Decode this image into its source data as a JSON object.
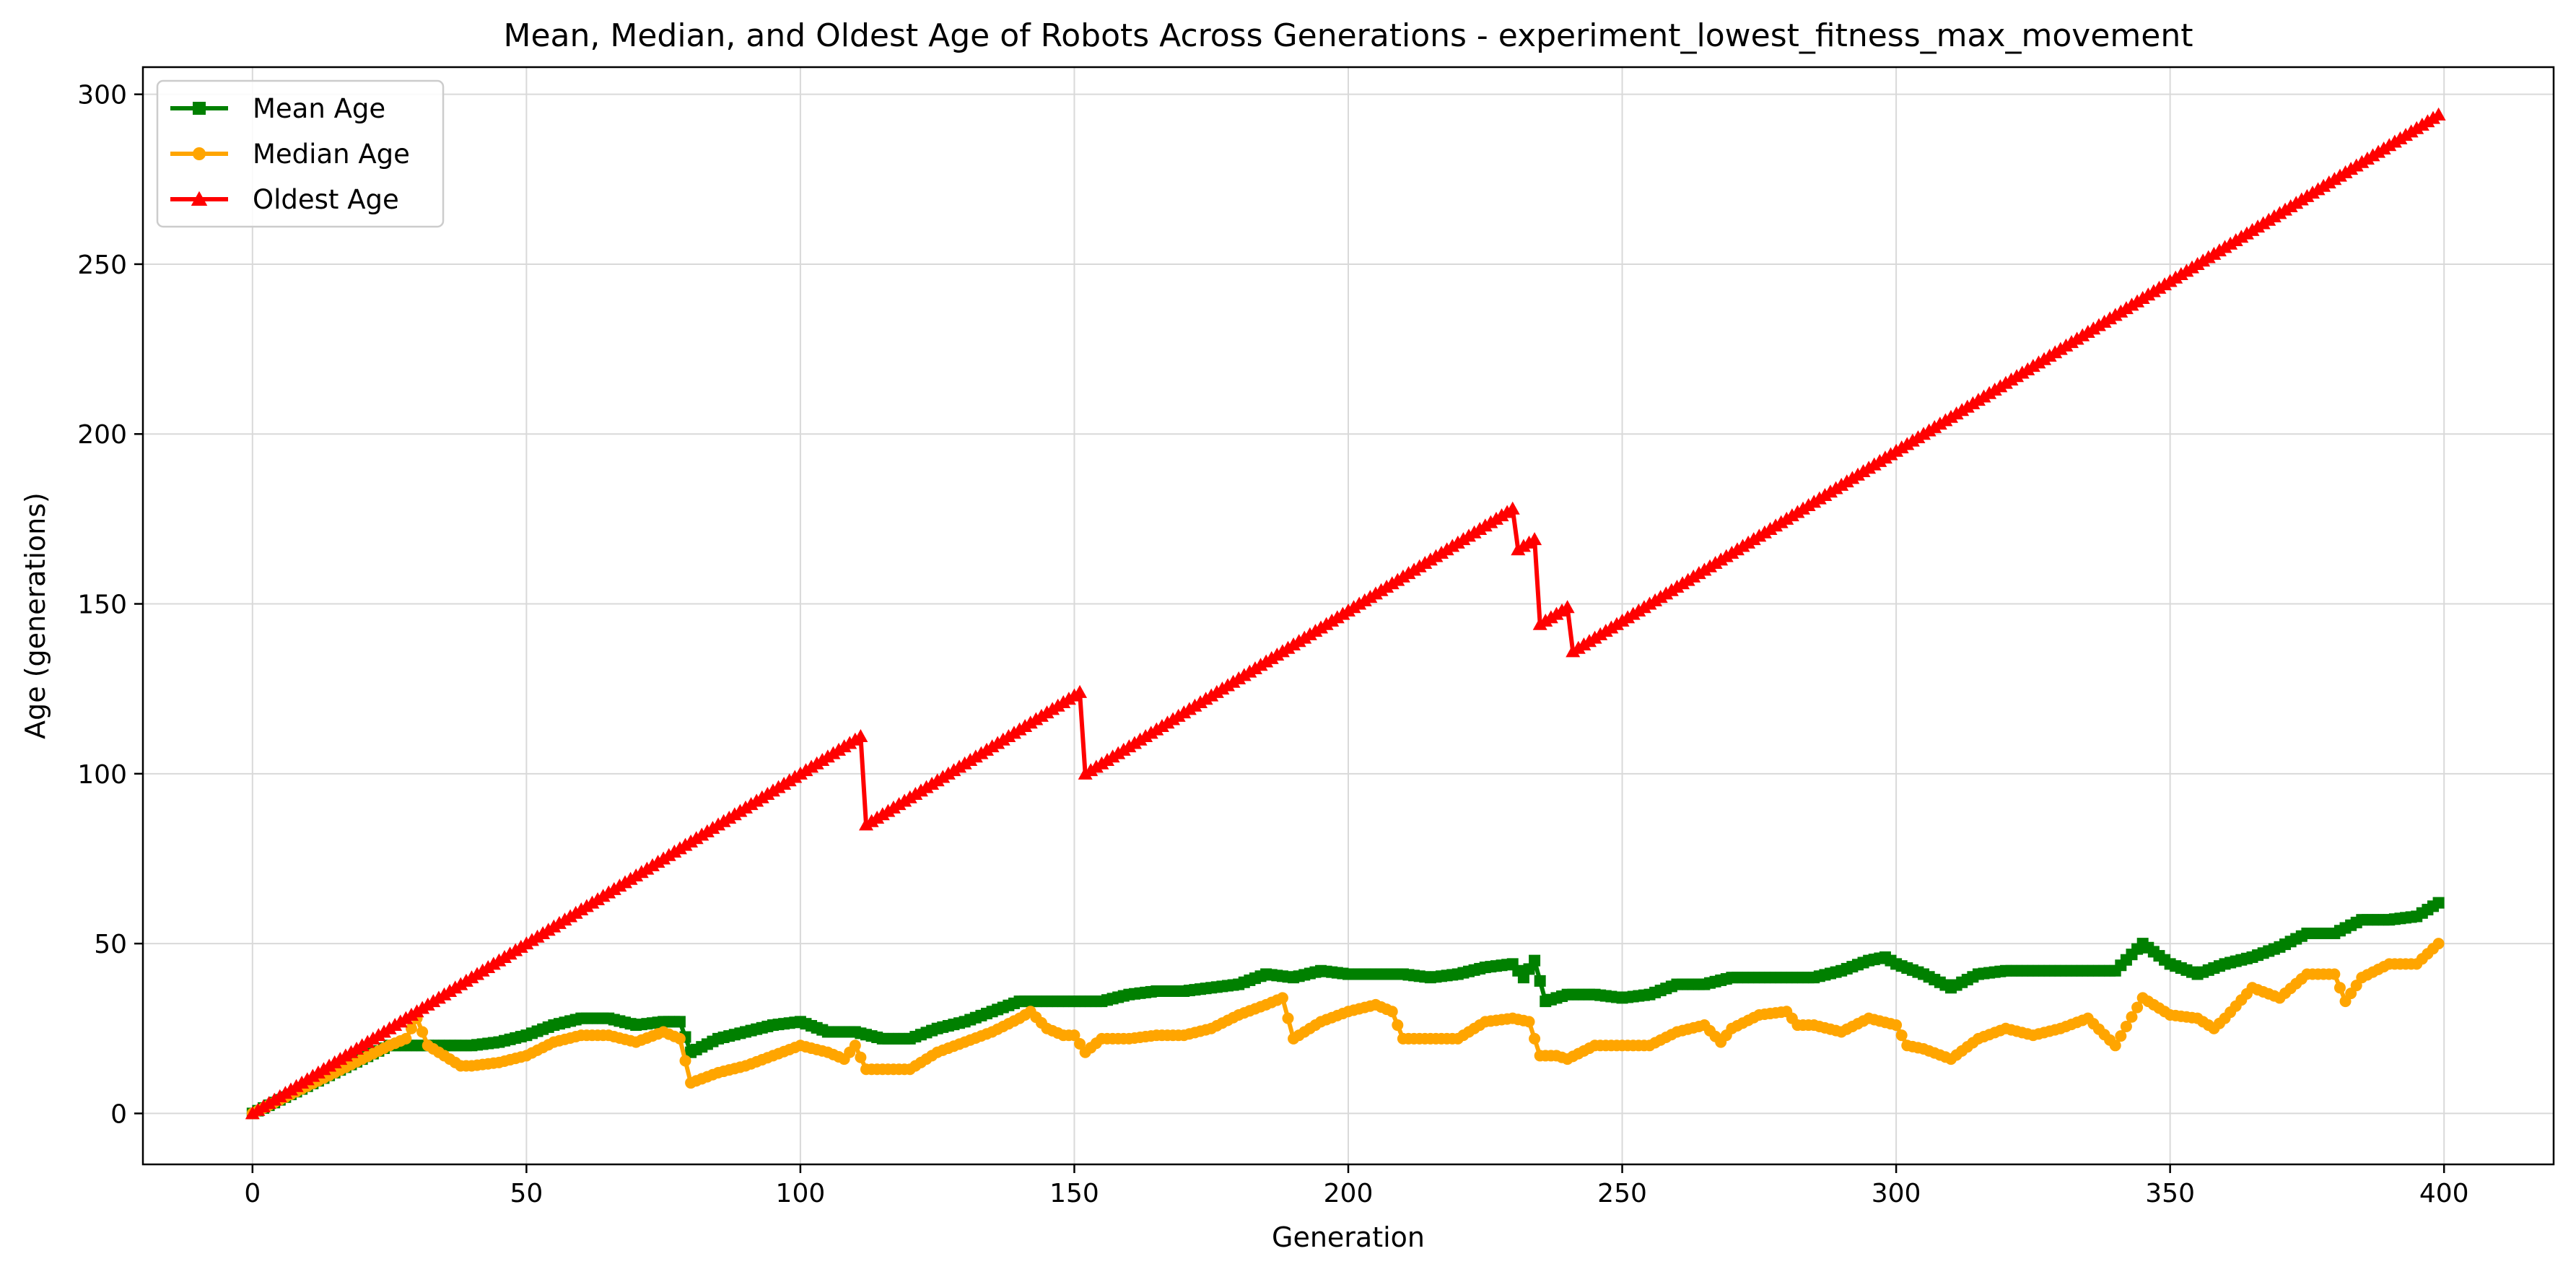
{
  "chart_data": {
    "type": "line",
    "title": "Mean, Median, and Oldest Age of Robots Across Generations - experiment_lowest_fitness_max_movement",
    "xlabel": "Generation",
    "ylabel": "Age (generations)",
    "xlim": [
      -20,
      420
    ],
    "ylim": [
      -15,
      308
    ],
    "xticks": [
      0,
      50,
      100,
      150,
      200,
      250,
      300,
      350,
      400
    ],
    "yticks": [
      0,
      50,
      100,
      150,
      200,
      250,
      300
    ],
    "grid": true,
    "legend_position": "top-left",
    "x": {
      "start": 0,
      "end": 399,
      "step": 1
    },
    "series": [
      {
        "name": "Mean Age",
        "color": "#008000",
        "marker": "square",
        "keypoints": [
          [
            0,
            0
          ],
          [
            10,
            8
          ],
          [
            20,
            16
          ],
          [
            25,
            20
          ],
          [
            30,
            20
          ],
          [
            35,
            20
          ],
          [
            40,
            20
          ],
          [
            45,
            21
          ],
          [
            50,
            23
          ],
          [
            55,
            26
          ],
          [
            60,
            28
          ],
          [
            65,
            28
          ],
          [
            70,
            26
          ],
          [
            75,
            27
          ],
          [
            78,
            27
          ],
          [
            80,
            18
          ],
          [
            85,
            22
          ],
          [
            90,
            24
          ],
          [
            95,
            26
          ],
          [
            100,
            27
          ],
          [
            105,
            24
          ],
          [
            110,
            24
          ],
          [
            115,
            22
          ],
          [
            120,
            22
          ],
          [
            125,
            25
          ],
          [
            130,
            27
          ],
          [
            135,
            30
          ],
          [
            140,
            33
          ],
          [
            145,
            33
          ],
          [
            150,
            33
          ],
          [
            155,
            33
          ],
          [
            160,
            35
          ],
          [
            165,
            36
          ],
          [
            170,
            36
          ],
          [
            175,
            37
          ],
          [
            180,
            38
          ],
          [
            185,
            41
          ],
          [
            190,
            40
          ],
          [
            195,
            42
          ],
          [
            200,
            41
          ],
          [
            205,
            41
          ],
          [
            210,
            41
          ],
          [
            215,
            40
          ],
          [
            220,
            41
          ],
          [
            225,
            43
          ],
          [
            230,
            44
          ],
          [
            232,
            40
          ],
          [
            234,
            45
          ],
          [
            236,
            33
          ],
          [
            240,
            35
          ],
          [
            245,
            35
          ],
          [
            250,
            34
          ],
          [
            255,
            35
          ],
          [
            260,
            38
          ],
          [
            265,
            38
          ],
          [
            270,
            40
          ],
          [
            275,
            40
          ],
          [
            280,
            40
          ],
          [
            285,
            40
          ],
          [
            290,
            42
          ],
          [
            295,
            45
          ],
          [
            298,
            46
          ],
          [
            300,
            44
          ],
          [
            305,
            41
          ],
          [
            310,
            37
          ],
          [
            315,
            41
          ],
          [
            320,
            42
          ],
          [
            325,
            42
          ],
          [
            330,
            42
          ],
          [
            335,
            42
          ],
          [
            340,
            42
          ],
          [
            345,
            50
          ],
          [
            350,
            44
          ],
          [
            355,
            41
          ],
          [
            360,
            44
          ],
          [
            365,
            46
          ],
          [
            370,
            49
          ],
          [
            375,
            53
          ],
          [
            380,
            53
          ],
          [
            385,
            57
          ],
          [
            390,
            57
          ],
          [
            395,
            58
          ],
          [
            399,
            62
          ]
        ]
      },
      {
        "name": "Median Age",
        "color": "#FFA500",
        "marker": "circle",
        "keypoints": [
          [
            0,
            0
          ],
          [
            10,
            8
          ],
          [
            20,
            16
          ],
          [
            25,
            20
          ],
          [
            28,
            22
          ],
          [
            30,
            28
          ],
          [
            32,
            20
          ],
          [
            35,
            17
          ],
          [
            38,
            14
          ],
          [
            40,
            14
          ],
          [
            45,
            15
          ],
          [
            50,
            17
          ],
          [
            55,
            21
          ],
          [
            60,
            23
          ],
          [
            65,
            23
          ],
          [
            70,
            21
          ],
          [
            75,
            24
          ],
          [
            78,
            22
          ],
          [
            80,
            9
          ],
          [
            85,
            12
          ],
          [
            90,
            14
          ],
          [
            95,
            17
          ],
          [
            100,
            20
          ],
          [
            105,
            18
          ],
          [
            108,
            16
          ],
          [
            110,
            20
          ],
          [
            112,
            13
          ],
          [
            115,
            13
          ],
          [
            120,
            13
          ],
          [
            125,
            18
          ],
          [
            130,
            21
          ],
          [
            135,
            24
          ],
          [
            140,
            28
          ],
          [
            142,
            30
          ],
          [
            145,
            25
          ],
          [
            148,
            23
          ],
          [
            150,
            23
          ],
          [
            152,
            18
          ],
          [
            155,
            22
          ],
          [
            160,
            22
          ],
          [
            165,
            23
          ],
          [
            170,
            23
          ],
          [
            175,
            25
          ],
          [
            180,
            29
          ],
          [
            185,
            32
          ],
          [
            188,
            34
          ],
          [
            190,
            22
          ],
          [
            195,
            27
          ],
          [
            200,
            30
          ],
          [
            205,
            32
          ],
          [
            208,
            30
          ],
          [
            210,
            22
          ],
          [
            215,
            22
          ],
          [
            220,
            22
          ],
          [
            225,
            27
          ],
          [
            230,
            28
          ],
          [
            233,
            27
          ],
          [
            235,
            17
          ],
          [
            238,
            17
          ],
          [
            240,
            16
          ],
          [
            245,
            20
          ],
          [
            250,
            20
          ],
          [
            255,
            20
          ],
          [
            260,
            24
          ],
          [
            265,
            26
          ],
          [
            268,
            21
          ],
          [
            270,
            25
          ],
          [
            275,
            29
          ],
          [
            280,
            30
          ],
          [
            282,
            26
          ],
          [
            285,
            26
          ],
          [
            290,
            24
          ],
          [
            295,
            28
          ],
          [
            300,
            26
          ],
          [
            302,
            20
          ],
          [
            305,
            19
          ],
          [
            310,
            16
          ],
          [
            315,
            22
          ],
          [
            320,
            25
          ],
          [
            325,
            23
          ],
          [
            330,
            25
          ],
          [
            335,
            28
          ],
          [
            340,
            20
          ],
          [
            345,
            34
          ],
          [
            350,
            29
          ],
          [
            355,
            28
          ],
          [
            358,
            25
          ],
          [
            360,
            28
          ],
          [
            365,
            37
          ],
          [
            370,
            34
          ],
          [
            375,
            41
          ],
          [
            380,
            41
          ],
          [
            382,
            33
          ],
          [
            385,
            40
          ],
          [
            390,
            44
          ],
          [
            395,
            44
          ],
          [
            399,
            50
          ]
        ]
      },
      {
        "name": "Oldest Age",
        "color": "#FF0000",
        "marker": "triangle",
        "keypoints": [
          [
            0,
            0
          ],
          [
            111,
            111
          ],
          [
            112,
            85
          ],
          [
            151,
            124
          ],
          [
            152,
            100
          ],
          [
            230,
            178
          ],
          [
            231,
            166
          ],
          [
            233,
            168
          ],
          [
            234,
            169
          ],
          [
            235,
            144
          ],
          [
            240,
            149
          ],
          [
            241,
            136
          ],
          [
            399,
            294
          ]
        ]
      }
    ]
  }
}
